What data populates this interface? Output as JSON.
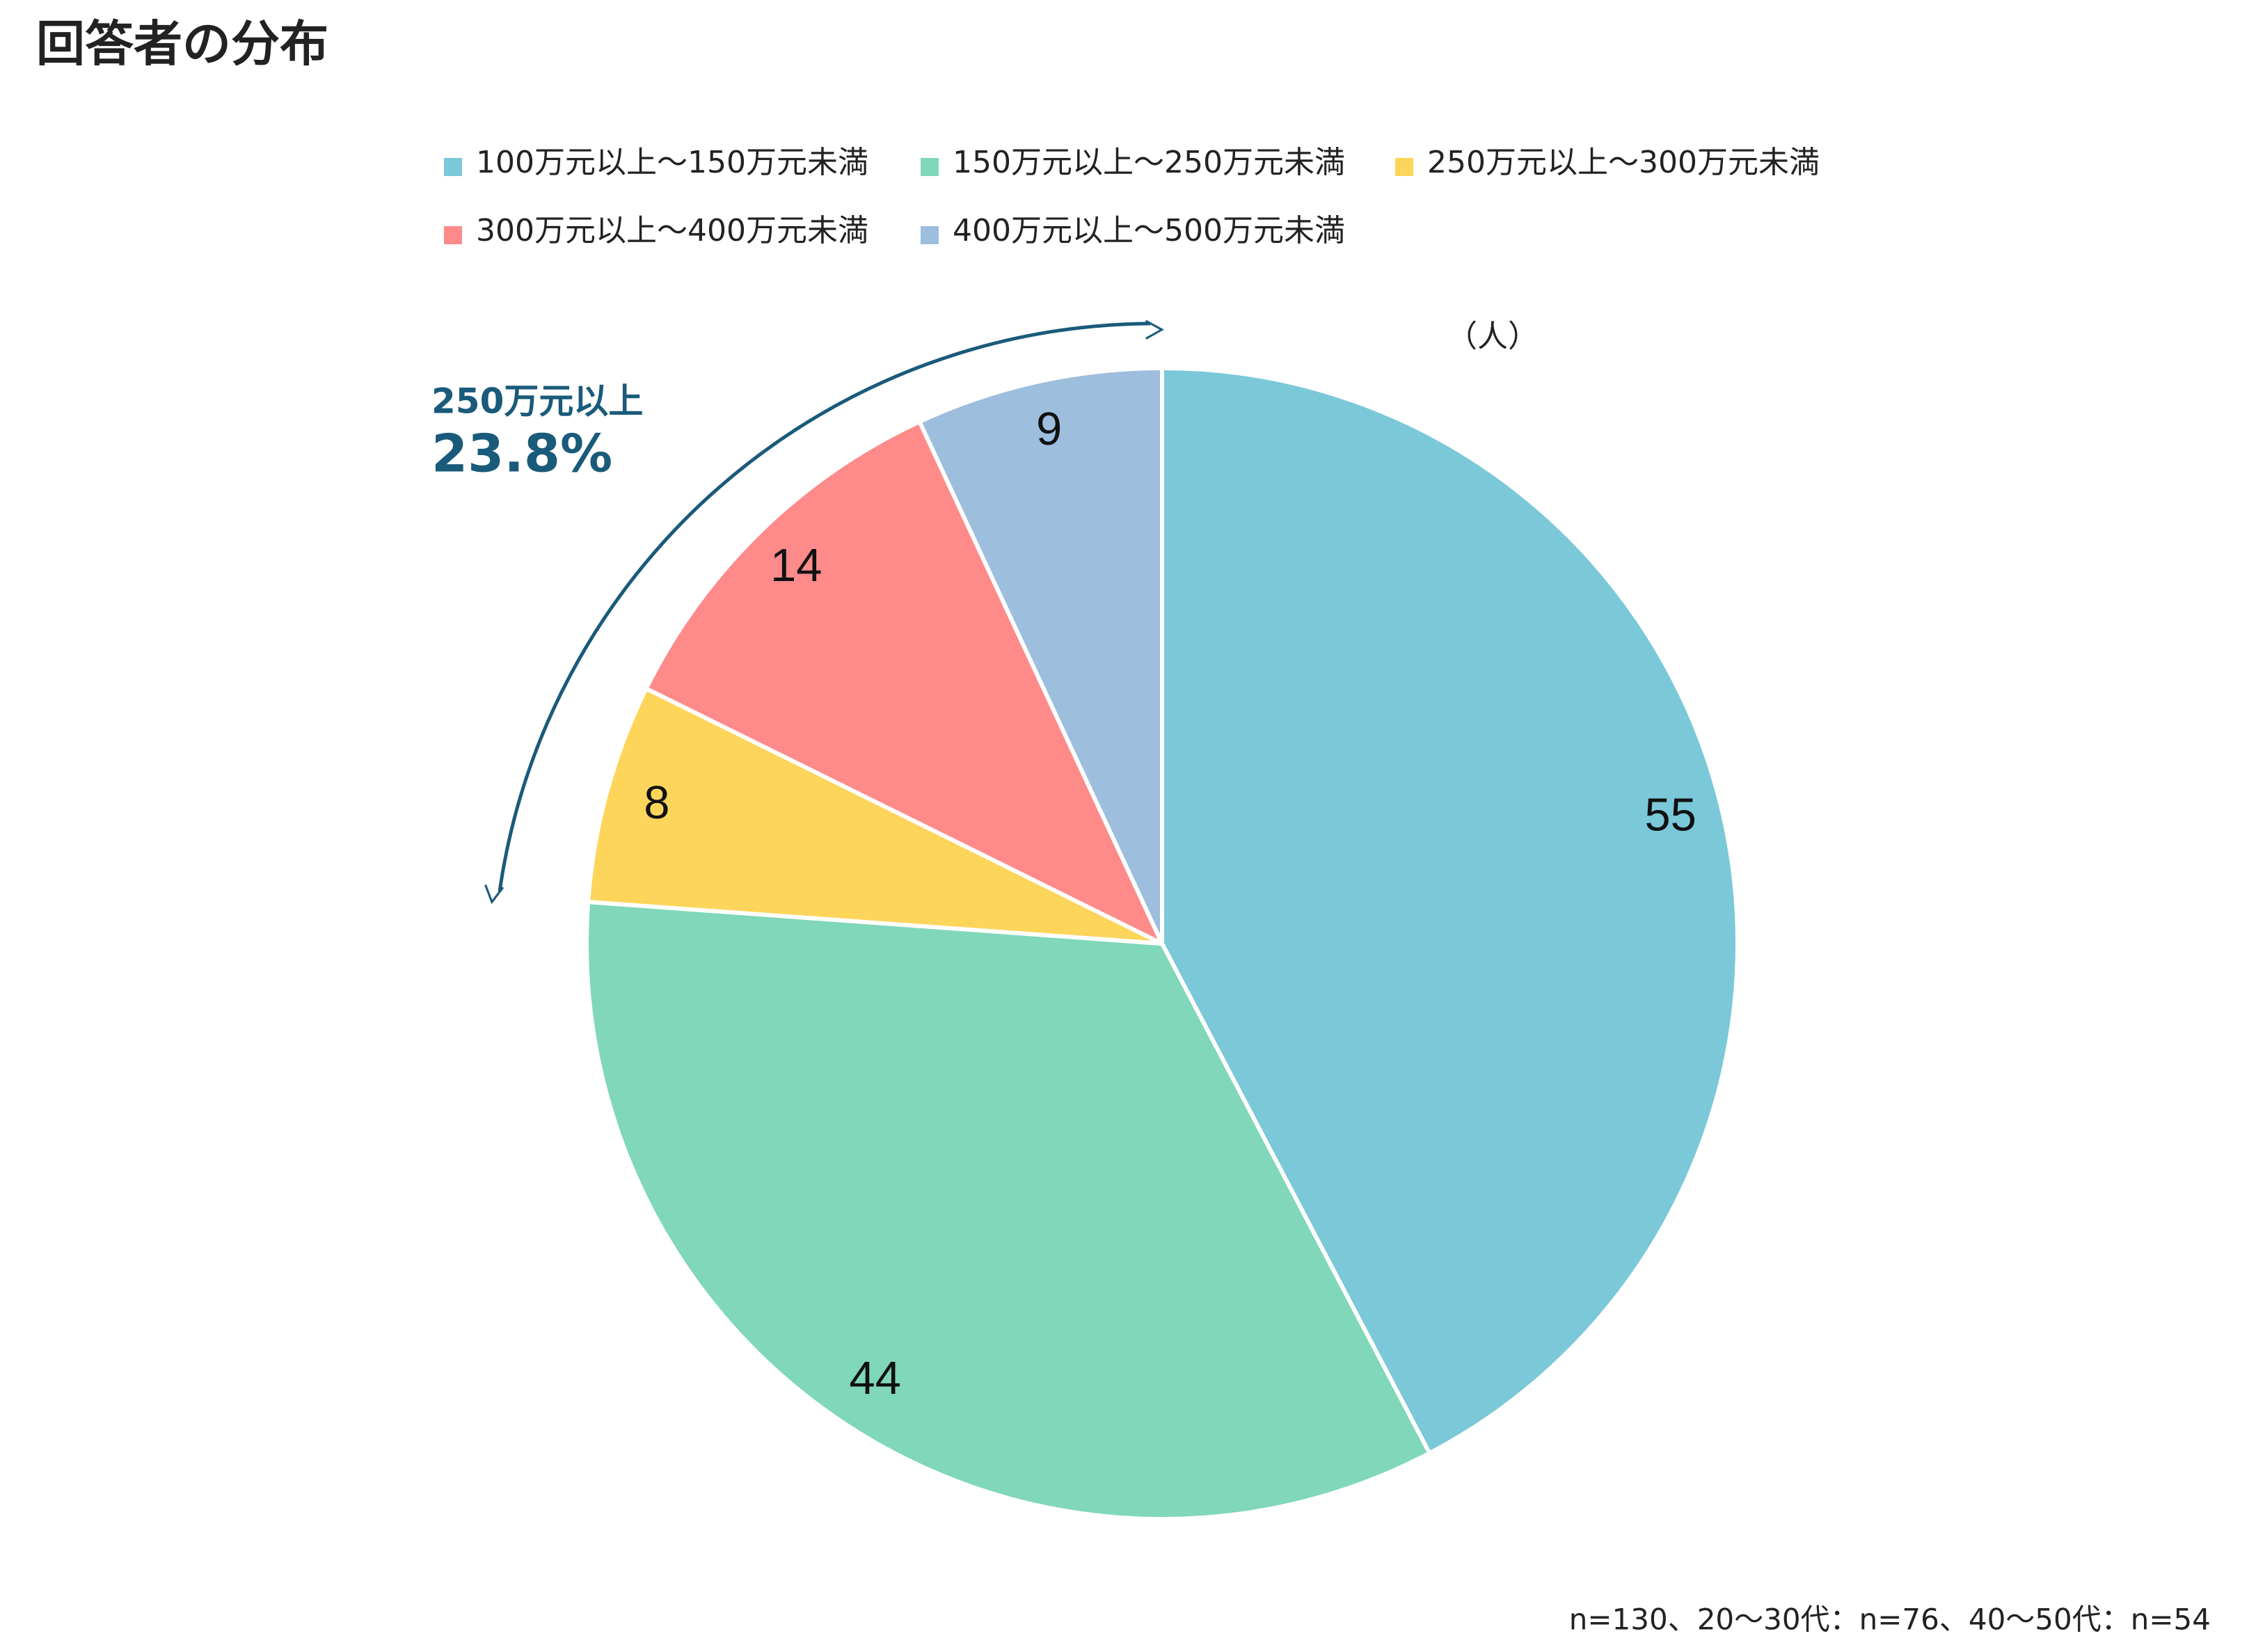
{
  "chart_data": {
    "type": "pie",
    "title": "回答者の分布",
    "unit_label": "（人）",
    "categories": [
      "100万元以上～150万元未満",
      "150万元以上～250万元未満",
      "250万元以上～300万元未満",
      "300万元以上～400万元未満",
      "400万元以上～500万元未満"
    ],
    "values": [
      55,
      44,
      8,
      14,
      9
    ],
    "colors": [
      "#7AC8D8",
      "#80D7BA",
      "#FDD55A",
      "#FF8A8A",
      "#9DBEDD"
    ],
    "annotation": {
      "label": "250万元以上",
      "value_text": "23.8%"
    },
    "note": "n=130、20〜30代：n=76、40〜50代：n=54"
  }
}
